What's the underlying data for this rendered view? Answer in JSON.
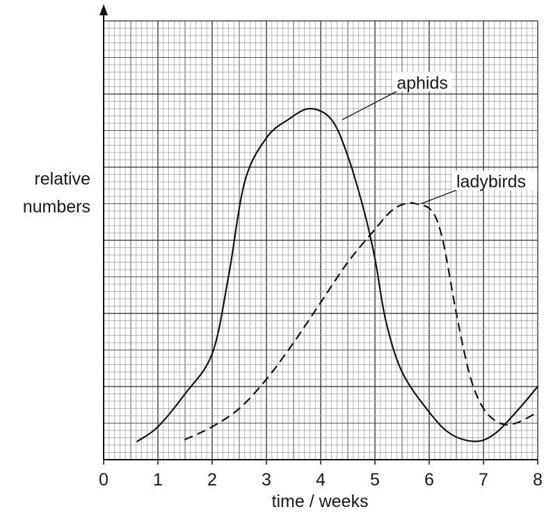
{
  "chart_data": {
    "type": "line",
    "xlabel": "time / weeks",
    "ylabel_lines": [
      "relative",
      "numbers"
    ],
    "xlim": [
      0,
      8
    ],
    "ylim": [
      0,
      12
    ],
    "x_ticks": [
      "0",
      "1",
      "2",
      "3",
      "4",
      "5",
      "6",
      "7",
      "8"
    ],
    "grid": true,
    "series": [
      {
        "name": "aphids",
        "style": "solid",
        "x": [
          0.62,
          1.0,
          1.5,
          2.0,
          2.3,
          2.6,
          3.0,
          3.4,
          3.8,
          4.2,
          4.5,
          4.8,
          5.0,
          5.2,
          5.5,
          6.0,
          6.4,
          6.85,
          7.2,
          7.6,
          8.0
        ],
        "y": [
          0.5,
          0.9,
          1.8,
          2.9,
          5.0,
          7.6,
          8.8,
          9.3,
          9.6,
          9.3,
          8.3,
          6.8,
          5.5,
          3.8,
          2.4,
          1.3,
          0.7,
          0.5,
          0.7,
          1.3,
          2.0
        ]
      },
      {
        "name": "ladybirds",
        "style": "dashed",
        "x": [
          1.5,
          2.0,
          2.5,
          3.0,
          3.5,
          4.0,
          4.5,
          5.0,
          5.3,
          5.55,
          5.75,
          6.05,
          6.25,
          6.5,
          6.75,
          7.0,
          7.3,
          7.6,
          8.0
        ],
        "y": [
          0.55,
          0.9,
          1.4,
          2.2,
          3.2,
          4.3,
          5.4,
          6.3,
          6.8,
          7.0,
          7.0,
          6.8,
          6.0,
          4.0,
          2.3,
          1.4,
          1.0,
          1.0,
          1.3
        ]
      }
    ],
    "annotations": [
      {
        "text": "aphids",
        "x": 5.4,
        "y": 10.3,
        "points_to": [
          4.4,
          9.3
        ]
      },
      {
        "text": "ladybirds",
        "x": 6.5,
        "y": 7.6,
        "points_to": [
          5.85,
          7.0
        ]
      }
    ]
  }
}
